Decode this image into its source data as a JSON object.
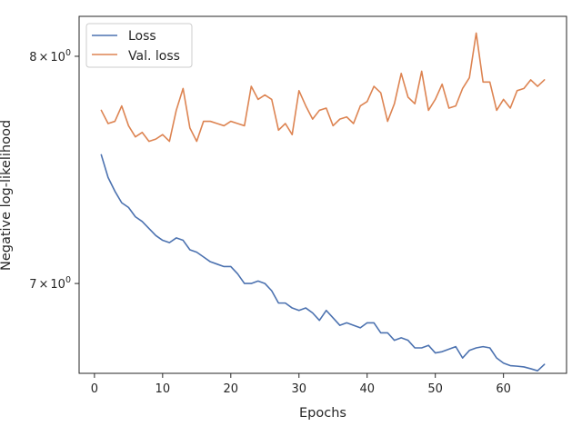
{
  "chart_data": {
    "type": "line",
    "title": "",
    "xlabel": "Epochs",
    "ylabel": "Negative log-likelihood",
    "yscale": "log",
    "xlim": [
      -2.25,
      69.25
    ],
    "ylim": [
      6.64,
      8.19
    ],
    "xticks": [
      0,
      10,
      20,
      30,
      40,
      50,
      60
    ],
    "xtick_labels": [
      "0",
      "10",
      "20",
      "30",
      "40",
      "50",
      "60"
    ],
    "yticks": [
      7.0,
      8.0
    ],
    "ytick_labels": [
      {
        "base": "7",
        "times": "×",
        "exp": "10",
        "sup": "0"
      },
      {
        "base": "8",
        "times": "×",
        "exp": "10",
        "sup": "0"
      }
    ],
    "grid": false,
    "legend_position": "upper-left",
    "x": [
      1,
      2,
      3,
      4,
      5,
      6,
      7,
      8,
      9,
      10,
      11,
      12,
      13,
      14,
      15,
      16,
      17,
      18,
      19,
      20,
      21,
      22,
      23,
      24,
      25,
      26,
      27,
      28,
      29,
      30,
      31,
      32,
      33,
      34,
      35,
      36,
      37,
      38,
      39,
      40,
      41,
      42,
      43,
      44,
      45,
      46,
      47,
      48,
      49,
      50,
      51,
      52,
      53,
      54,
      55,
      56,
      57,
      58,
      59,
      60,
      61,
      62,
      63,
      64,
      65,
      66
    ],
    "series": [
      {
        "name": "Loss",
        "color": "#4c72b0",
        "values": [
          7.55,
          7.45,
          7.39,
          7.34,
          7.32,
          7.28,
          7.26,
          7.23,
          7.2,
          7.18,
          7.17,
          7.19,
          7.18,
          7.14,
          7.13,
          7.11,
          7.09,
          7.08,
          7.07,
          7.07,
          7.04,
          7.0,
          7.0,
          7.01,
          7.0,
          6.97,
          6.92,
          6.92,
          6.9,
          6.89,
          6.9,
          6.88,
          6.85,
          6.89,
          6.86,
          6.83,
          6.84,
          6.83,
          6.82,
          6.84,
          6.84,
          6.8,
          6.8,
          6.77,
          6.78,
          6.77,
          6.74,
          6.74,
          6.75,
          6.72,
          6.725,
          6.735,
          6.745,
          6.7,
          6.73,
          6.74,
          6.745,
          6.74,
          6.7,
          6.68,
          6.67,
          6.668,
          6.665,
          6.658,
          6.65,
          6.675
        ]
      },
      {
        "name": "Val. loss",
        "color": "#dd8452",
        "values": [
          7.75,
          7.69,
          7.7,
          7.77,
          7.68,
          7.63,
          7.65,
          7.61,
          7.62,
          7.64,
          7.61,
          7.75,
          7.85,
          7.67,
          7.61,
          7.7,
          7.7,
          7.69,
          7.68,
          7.7,
          7.69,
          7.68,
          7.86,
          7.8,
          7.82,
          7.8,
          7.66,
          7.69,
          7.64,
          7.84,
          7.77,
          7.71,
          7.75,
          7.76,
          7.68,
          7.71,
          7.72,
          7.69,
          7.77,
          7.79,
          7.86,
          7.83,
          7.7,
          7.78,
          7.92,
          7.81,
          7.78,
          7.93,
          7.75,
          7.8,
          7.87,
          7.76,
          7.77,
          7.85,
          7.9,
          8.11,
          7.88,
          7.88,
          7.75,
          7.8,
          7.76,
          7.84,
          7.85,
          7.89,
          7.86,
          7.89
        ]
      }
    ]
  }
}
